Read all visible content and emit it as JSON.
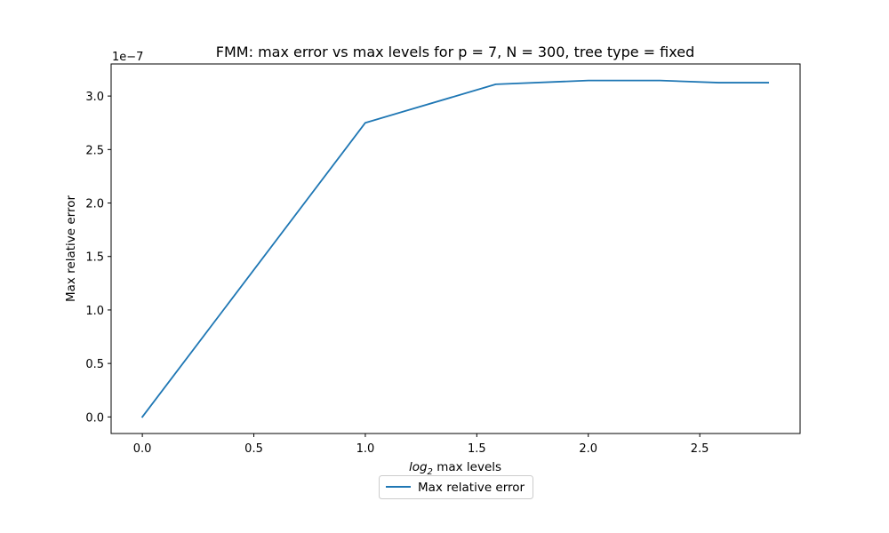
{
  "chart_data": {
    "type": "line",
    "title": "FMM: max error vs max levels for p = 7, N = 300, tree type = fixed",
    "xlabel_math": "log",
    "xlabel_sub": "2",
    "xlabel_rest": " max levels",
    "ylabel": "Max relative error",
    "offset_text": "1e−7",
    "xlim": [
      -0.14,
      2.95
    ],
    "ylim": [
      -0.155,
      3.3
    ],
    "x_ticks": [
      0.0,
      0.5,
      1.0,
      1.5,
      2.0,
      2.5
    ],
    "x_tick_labels": [
      "0.0",
      "0.5",
      "1.0",
      "1.5",
      "2.0",
      "2.5"
    ],
    "y_ticks": [
      0.0,
      0.5,
      1.0,
      1.5,
      2.0,
      2.5,
      3.0
    ],
    "y_tick_labels": [
      "0.0",
      "0.5",
      "1.0",
      "1.5",
      "2.0",
      "2.5",
      "3.0"
    ],
    "y_scale_exponent": -7,
    "grid": false,
    "legend_position": "below",
    "series": [
      {
        "name": "Max relative error",
        "color": "#1f77b4",
        "x": [
          0.0,
          1.0,
          1.585,
          2.0,
          2.322,
          2.585,
          2.807
        ],
        "y": [
          0.0,
          2.75,
          3.11,
          3.145,
          3.145,
          3.125,
          3.125
        ]
      }
    ]
  }
}
